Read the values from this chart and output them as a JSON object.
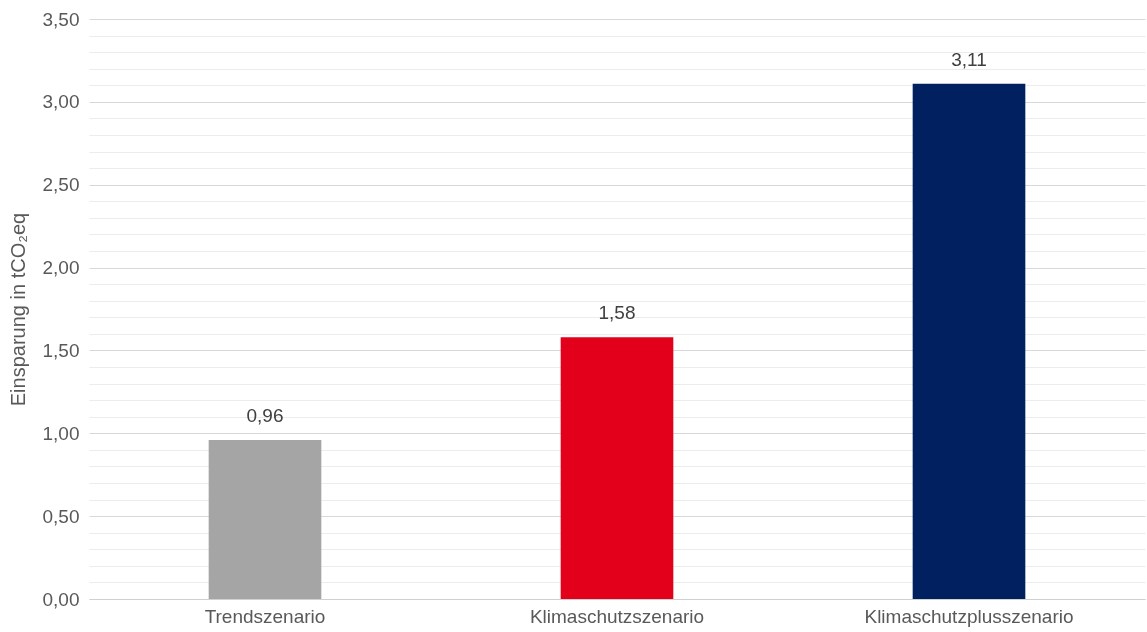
{
  "chart_data": {
    "type": "bar",
    "ylabel": "Einsparung in tCO₂eq",
    "categories": [
      "Trendszenario",
      "Klimaschutzszenario",
      "Klimaschutzplusszenario"
    ],
    "values": [
      0.96,
      1.58,
      3.11
    ],
    "colors": [
      "#a5a5a5",
      "#e2001a",
      "#002060"
    ],
    "value_labels": [
      "0,96",
      "1,58",
      "3,11"
    ],
    "ylim": [
      0,
      3.5
    ],
    "yticks": [
      {
        "value": 0,
        "label": "0,00"
      },
      {
        "value": 0.1,
        "label": null
      },
      {
        "value": 0.2,
        "label": null
      },
      {
        "value": 0.3,
        "label": null
      },
      {
        "value": 0.4,
        "label": null
      },
      {
        "value": 0.5,
        "label": "0,50"
      },
      {
        "value": 0.6,
        "label": null
      },
      {
        "value": 0.7,
        "label": null
      },
      {
        "value": 0.8,
        "label": null
      },
      {
        "value": 0.9,
        "label": null
      },
      {
        "value": 1,
        "label": "1,00"
      },
      {
        "value": 1.1,
        "label": null
      },
      {
        "value": 1.2,
        "label": null
      },
      {
        "value": 1.3,
        "label": null
      },
      {
        "value": 1.4,
        "label": null
      },
      {
        "value": 1.5,
        "label": "1,50"
      },
      {
        "value": 1.6,
        "label": null
      },
      {
        "value": 1.7,
        "label": null
      },
      {
        "value": 1.8,
        "label": null
      },
      {
        "value": 1.9,
        "label": null
      },
      {
        "value": 2,
        "label": "2,00"
      },
      {
        "value": 2.1,
        "label": null
      },
      {
        "value": 2.2,
        "label": null
      },
      {
        "value": 2.3,
        "label": null
      },
      {
        "value": 2.4,
        "label": null
      },
      {
        "value": 2.5,
        "label": "2,50"
      },
      {
        "value": 2.6,
        "label": null
      },
      {
        "value": 2.7,
        "label": null
      },
      {
        "value": 2.8,
        "label": null
      },
      {
        "value": 2.9,
        "label": null
      },
      {
        "value": 3,
        "label": "3,00"
      },
      {
        "value": 3.1,
        "label": null
      },
      {
        "value": 3.2,
        "label": null
      },
      {
        "value": 3.3,
        "label": null
      },
      {
        "value": 3.4,
        "label": null
      },
      {
        "value": 3.5,
        "label": "3,50"
      }
    ],
    "grid": true
  }
}
